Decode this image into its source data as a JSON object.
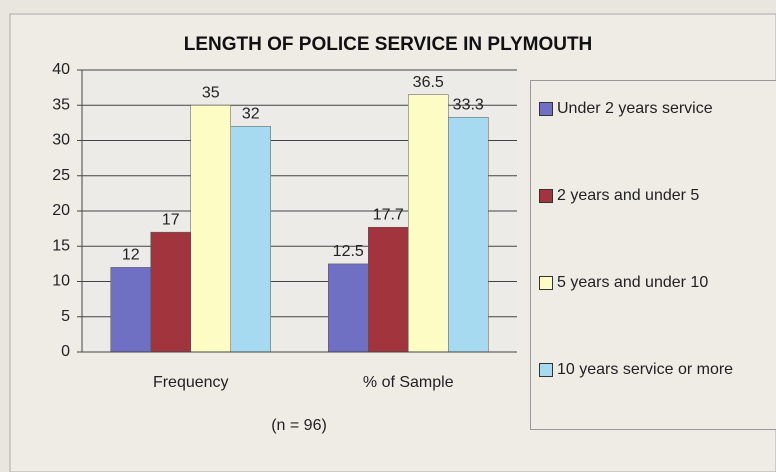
{
  "chart_data": {
    "type": "bar",
    "title": "LENGTH OF POLICE SERVICE IN PLYMOUTH",
    "categories": [
      "Frequency",
      "% of Sample"
    ],
    "series": [
      {
        "name": "Under 2 years service",
        "color": "#6f6fc4",
        "values": [
          12,
          12.5
        ]
      },
      {
        "name": "2 years and under 5",
        "color": "#a2343e",
        "values": [
          17,
          17.7
        ]
      },
      {
        "name": "5 years and under 10",
        "color": "#fcfcc4",
        "values": [
          35,
          36.5
        ]
      },
      {
        "name": "10 years service or more",
        "color": "#a6daf0",
        "values": [
          32,
          33.3
        ]
      }
    ],
    "annotation": "(n = 96)",
    "ylim": [
      0,
      40
    ],
    "yticks": [
      0,
      5,
      10,
      15,
      20,
      25,
      30,
      35,
      40
    ],
    "grid": true,
    "legend": "right"
  }
}
